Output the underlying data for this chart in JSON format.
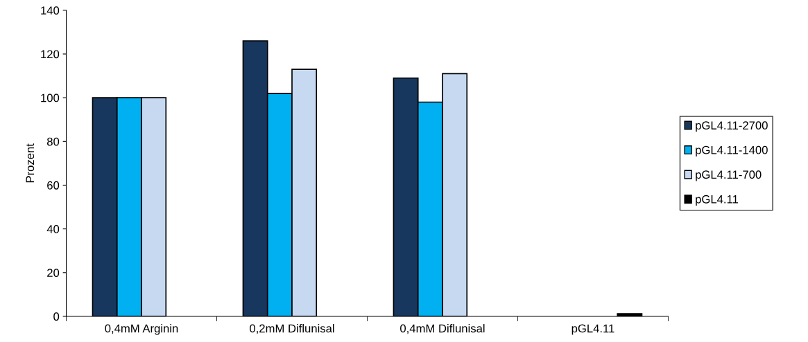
{
  "chart_data": {
    "type": "bar",
    "ylabel": "Prozent",
    "categories": [
      "0,4mM Arginin",
      "0,2mM Diflunisal",
      "0,4mM Diflunisal",
      "pGL4.11"
    ],
    "series": [
      {
        "name": "pGL4.11-2700",
        "color": "#17375e",
        "values": [
          100,
          126,
          109,
          null
        ]
      },
      {
        "name": "pGL4.11-1400",
        "color": "#00b0f0",
        "values": [
          100,
          102,
          98,
          null
        ]
      },
      {
        "name": "pGL4.11-700",
        "color": "#c6d9f1",
        "values": [
          100,
          113,
          111,
          null
        ]
      },
      {
        "name": "pGL4.11",
        "color": "#000000",
        "values": [
          null,
          null,
          null,
          1.2
        ]
      }
    ],
    "ylim": [
      0,
      140
    ],
    "yticks": [
      0,
      20,
      40,
      60,
      80,
      100,
      120,
      140
    ],
    "grid": false,
    "legend": "right"
  }
}
